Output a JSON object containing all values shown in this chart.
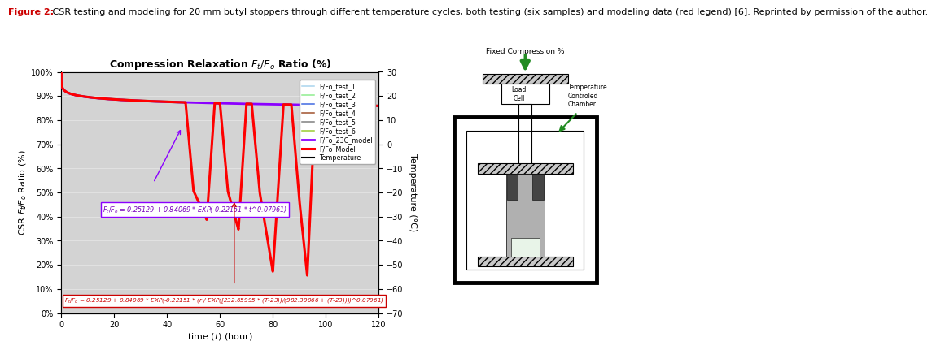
{
  "title": "Compression Relaxation $F_t/F_o$ Ratio (%)",
  "xlabel": "time ($t$) (hour)",
  "ylabel_left": "CSR $F_t\\!/F_o$ Ratio (%)",
  "ylabel_right": "Temperature (°C)",
  "xlim": [
    0,
    120
  ],
  "ylim_left": [
    0,
    1.0
  ],
  "ylim_right": [
    -70,
    30
  ],
  "yticks_left": [
    0.0,
    0.1,
    0.2,
    0.3,
    0.4,
    0.5,
    0.6,
    0.7,
    0.8,
    0.9,
    1.0
  ],
  "ytick_labels_left": [
    "0%",
    "10%",
    "20%",
    "30%",
    "40%",
    "50%",
    "60%",
    "70%",
    "80%",
    "90%",
    "100%"
  ],
  "yticks_right": [
    -70,
    -60,
    -50,
    -40,
    -30,
    -20,
    -10,
    0,
    10,
    20,
    30
  ],
  "xticks": [
    0,
    20,
    40,
    60,
    80,
    100,
    120
  ],
  "bg_color": "#d3d3d3",
  "caption_prefix": "Figure 2:",
  "caption_body": " CSR testing and modeling for 20 mm butyl stoppers through different temperature cycles, both testing (six samples) and modeling data (red legend) [6]. Reprinted by permission of the author.",
  "legend_entries": [
    "F/Fo_test_1",
    "F/Fo_test_2",
    "F/Fo_test_3",
    "F/Fo_test_4",
    "F/Fo_test_5",
    "F/Fo_test_6",
    "F/Fo_23C_model",
    "F/Fo_Model",
    "Temperature"
  ],
  "legend_colors": [
    "#aad4ed",
    "#90ee90",
    "#4169e1",
    "#a0522d",
    "#808080",
    "#9acd32",
    "#8b00ff",
    "#ff0000",
    "#000000"
  ],
  "purple_box_text": "$F_t/F_o$ = 0.25129 + 0.84069 * EXP(-0.22151 * $t$^0.07961)",
  "red_box_text": "$F_t/F_o$ = 0.25129 + 0.84069 * EXP(-0.22151 * ($r$ / EXP([232.65995 * ($T$-23))/(982.39066 + ($T$-23))))^0.07961)",
  "diagram_title": "Fixed Compression %",
  "load_cell_label": "Load\nCell",
  "temp_chamber_label": "Temperature\nControled\nChamber"
}
